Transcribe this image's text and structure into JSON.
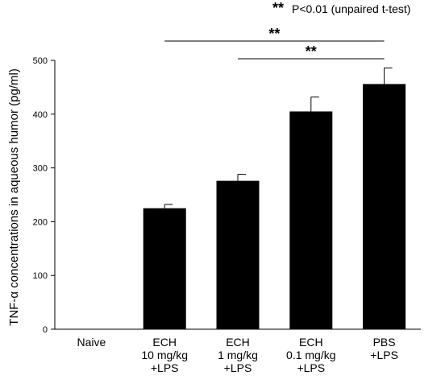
{
  "chart_data": {
    "type": "bar",
    "categories": [
      [
        "Naive"
      ],
      [
        "ECH",
        "10 mg/kg",
        "+LPS"
      ],
      [
        "ECH",
        "1 mg/kg",
        "+LPS"
      ],
      [
        "ECH",
        "0.1 mg/kg",
        "+LPS"
      ],
      [
        "PBS",
        "+LPS"
      ]
    ],
    "values": [
      0,
      225,
      276,
      405,
      456
    ],
    "errors": [
      0,
      7,
      12,
      27,
      30
    ],
    "ylabel": "TNF-α concentrations in aqueous humor (pg/ml)",
    "ylim": [
      0,
      500
    ],
    "yticks": [
      0,
      100,
      200,
      300,
      400,
      500
    ],
    "bar_color": "#000000",
    "significance": [
      {
        "from": 1,
        "to": 4,
        "label": "**"
      },
      {
        "from": 2,
        "to": 4,
        "label": "**"
      }
    ],
    "legend": {
      "stars": "**",
      "text": "P<0.01 (unpaired t-test)"
    }
  }
}
